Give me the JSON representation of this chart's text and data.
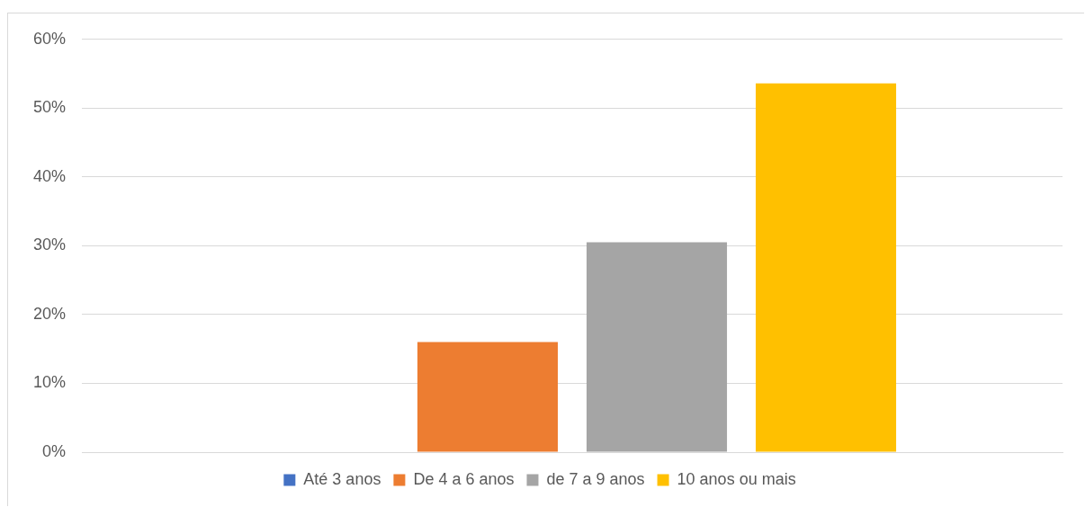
{
  "chart_data": {
    "type": "bar",
    "categories": [
      null
    ],
    "series": [
      {
        "name": "Até 3 anos",
        "color": "#4472c4",
        "values": [
          0
        ]
      },
      {
        "name": "De 4 a 6 anos",
        "color": "#ed7d31",
        "values": [
          16
        ]
      },
      {
        "name": "de 7 a 9 anos",
        "color": "#a5a5a5",
        "values": [
          30.5
        ]
      },
      {
        "name": "10 anos ou mais",
        "color": "#ffc000",
        "values": [
          53.6
        ]
      }
    ],
    "ylim": [
      0,
      60
    ],
    "yticks": [
      {
        "value": 0,
        "label": "0%"
      },
      {
        "value": 10,
        "label": "10%"
      },
      {
        "value": 20,
        "label": "20%"
      },
      {
        "value": 30,
        "label": "30%"
      },
      {
        "value": 40,
        "label": "40%"
      },
      {
        "value": 50,
        "label": "50%"
      },
      {
        "value": 60,
        "label": "60%"
      }
    ],
    "grid": "y",
    "legend": "bottom"
  }
}
